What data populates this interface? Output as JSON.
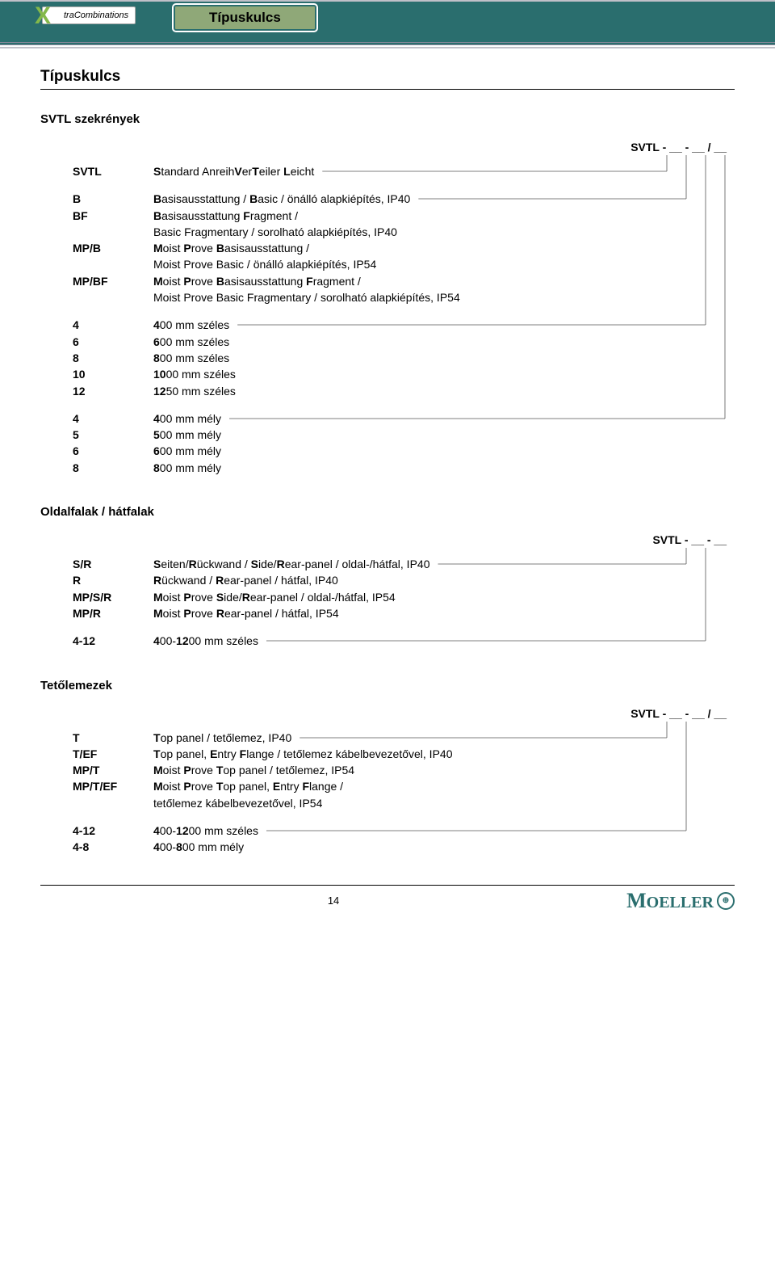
{
  "header": {
    "logo_text": "traCombinations",
    "tab_title": "Típuskulcs"
  },
  "page_title": "Típuskulcs",
  "sections": [
    {
      "title": "SVTL szekrények",
      "pattern": "SVTL - __ - __ / __",
      "groups": [
        {
          "rows": [
            {
              "code": "SVTL",
              "desc_parts": [
                [
                  "S",
                  "tandard Anreih"
                ],
                [
                  "V",
                  "er"
                ],
                [
                  "T",
                  "eiler "
                ],
                [
                  "L",
                  "eicht"
                ]
              ]
            }
          ]
        },
        {
          "rows": [
            {
              "code": "B",
              "desc_parts": [
                [
                  "B",
                  "asisausstattung / "
                ],
                [
                  "B",
                  "asic / önálló alapkiépítés, IP40"
                ]
              ]
            },
            {
              "code": "BF",
              "desc_parts": [
                [
                  "B",
                  "asisausstattung "
                ],
                [
                  "F",
                  "ragment /"
                ]
              ],
              "cont": "Basic Fragmentary / sorolható alapkiépítés, IP40"
            },
            {
              "code": "MP/B",
              "desc_parts": [
                [
                  "M",
                  "oist "
                ],
                [
                  "P",
                  "rove "
                ],
                [
                  "B",
                  "asisausstattung /"
                ]
              ],
              "cont": "Moist Prove Basic / önálló alapkiépítés, IP54"
            },
            {
              "code": "MP/BF",
              "desc_parts": [
                [
                  "M",
                  "oist "
                ],
                [
                  "P",
                  "rove "
                ],
                [
                  "B",
                  "asisausstattung "
                ],
                [
                  "F",
                  "ragment /"
                ]
              ],
              "cont": "Moist Prove Basic Fragmentary / sorolható alapkiépítés, IP54"
            }
          ]
        },
        {
          "rows": [
            {
              "code": "4",
              "desc_parts": [
                [
                  "4",
                  "00 mm széles"
                ]
              ]
            },
            {
              "code": "6",
              "desc_parts": [
                [
                  "6",
                  "00 mm széles"
                ]
              ]
            },
            {
              "code": "8",
              "desc_parts": [
                [
                  "8",
                  "00 mm széles"
                ]
              ]
            },
            {
              "code": "10",
              "desc_parts": [
                [
                  "10",
                  "00 mm széles"
                ]
              ]
            },
            {
              "code": "12",
              "desc_parts": [
                [
                  "12",
                  "50 mm széles"
                ]
              ]
            }
          ]
        },
        {
          "rows": [
            {
              "code": "4",
              "desc_parts": [
                [
                  "4",
                  "00 mm mély"
                ]
              ]
            },
            {
              "code": "5",
              "desc_parts": [
                [
                  "5",
                  "00 mm mély"
                ]
              ]
            },
            {
              "code": "6",
              "desc_parts": [
                [
                  "6",
                  "00 mm mély"
                ]
              ]
            },
            {
              "code": "8",
              "desc_parts": [
                [
                  "8",
                  "00 mm mély"
                ]
              ]
            }
          ]
        }
      ]
    },
    {
      "title": "Oldalfalak / hátfalak",
      "pattern": "SVTL - __ - __",
      "groups": [
        {
          "rows": [
            {
              "code": "S/R",
              "desc_parts": [
                [
                  "S",
                  "eiten/"
                ],
                [
                  "R",
                  "ückwand / "
                ],
                [
                  "S",
                  "ide/"
                ],
                [
                  "R",
                  "ear-panel / oldal-/hátfal, IP40"
                ]
              ]
            },
            {
              "code": "R",
              "desc_parts": [
                [
                  "R",
                  "ückwand / "
                ],
                [
                  "R",
                  "ear-panel / hátfal, IP40"
                ]
              ]
            },
            {
              "code": "MP/S/R",
              "desc_parts": [
                [
                  "M",
                  "oist "
                ],
                [
                  "P",
                  "rove "
                ],
                [
                  "S",
                  "ide/"
                ],
                [
                  "R",
                  "ear-panel / oldal-/hátfal, IP54"
                ]
              ]
            },
            {
              "code": "MP/R",
              "desc_parts": [
                [
                  "M",
                  "oist "
                ],
                [
                  "P",
                  "rove "
                ],
                [
                  "R",
                  "ear-panel / hátfal, IP54"
                ]
              ]
            }
          ]
        },
        {
          "rows": [
            {
              "code": "4-12",
              "desc_parts": [
                [
                  "4",
                  "00-"
                ],
                [
                  "12",
                  "00 mm széles"
                ]
              ]
            }
          ]
        }
      ]
    },
    {
      "title": "Tetőlemezek",
      "pattern": "SVTL - __ - __ / __",
      "groups": [
        {
          "rows": [
            {
              "code": "T",
              "desc_parts": [
                [
                  "T",
                  "op panel / tetőlemez, IP40"
                ]
              ]
            },
            {
              "code": "T/EF",
              "desc_parts": [
                [
                  "T",
                  "op panel, "
                ],
                [
                  "E",
                  "ntry "
                ],
                [
                  "F",
                  "lange / tetőlemez kábelbevezetővel, IP40"
                ]
              ]
            },
            {
              "code": "MP/T",
              "desc_parts": [
                [
                  "M",
                  "oist "
                ],
                [
                  "P",
                  "rove "
                ],
                [
                  "T",
                  "op panel / tetőlemez, IP54"
                ]
              ]
            },
            {
              "code": "MP/T/EF",
              "desc_parts": [
                [
                  "M",
                  "oist "
                ],
                [
                  "P",
                  "rove "
                ],
                [
                  "T",
                  "op panel, "
                ],
                [
                  "E",
                  "ntry "
                ],
                [
                  "F",
                  "lange /"
                ]
              ],
              "cont": "tetőlemez kábelbevezetővel, IP54"
            }
          ]
        },
        {
          "rows": [
            {
              "code": "4-12",
              "desc_parts": [
                [
                  "4",
                  "00-"
                ],
                [
                  "12",
                  "00 mm széles"
                ]
              ]
            },
            {
              "code": "4-8",
              "desc_parts": [
                [
                  "4",
                  "00-"
                ],
                [
                  "8",
                  "00 mm mély"
                ]
              ]
            }
          ]
        }
      ]
    }
  ],
  "footer": {
    "page_number": "14",
    "brand": "MOELLER"
  },
  "colors": {
    "header_bg": "#2a6e6e",
    "tab_bg": "#8fa878",
    "logo_x": "#84b84a",
    "brand": "#2a6e6e"
  }
}
